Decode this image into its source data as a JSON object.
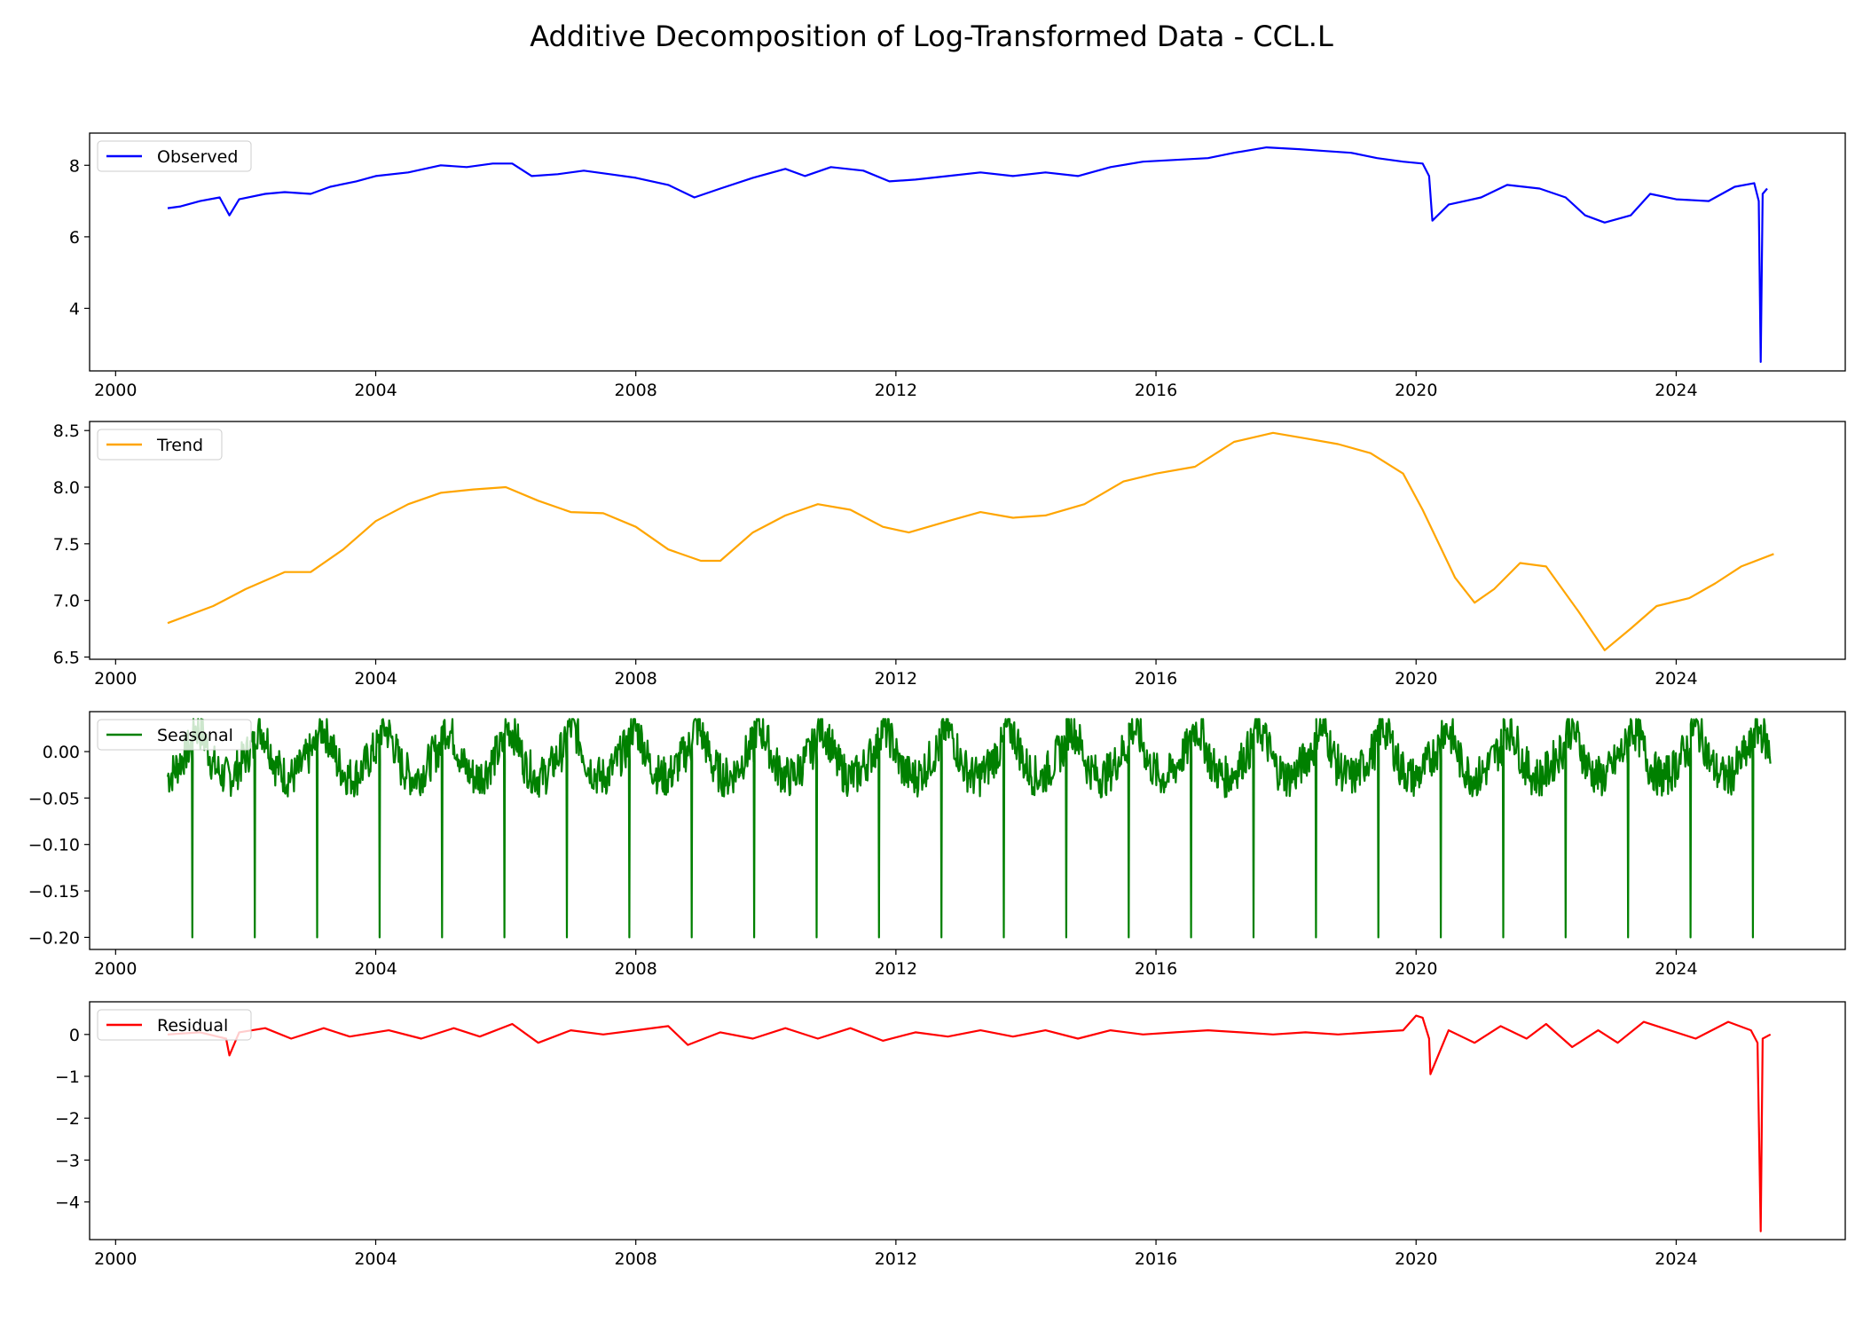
{
  "chart_data": {
    "title": "Additive Decomposition of Log-Transformed Data - CCL.L",
    "type": "line",
    "x_range": [
      1999.6,
      2026.6
    ],
    "x_ticks": [
      2000,
      2004,
      2008,
      2012,
      2016,
      2020,
      2024
    ],
    "panels": [
      {
        "name": "Observed",
        "color": "#0000ff",
        "legend": "upper-left",
        "ylim": [
          2.25,
          8.9
        ],
        "yticks": [
          4,
          6,
          8
        ],
        "yticklabels": [
          "4",
          "6",
          "8"
        ],
        "points": [
          [
            2000.8,
            6.8
          ],
          [
            2001.0,
            6.85
          ],
          [
            2001.3,
            7.0
          ],
          [
            2001.6,
            7.1
          ],
          [
            2001.75,
            6.6
          ],
          [
            2001.9,
            7.05
          ],
          [
            2002.3,
            7.2
          ],
          [
            2002.6,
            7.25
          ],
          [
            2003.0,
            7.2
          ],
          [
            2003.3,
            7.4
          ],
          [
            2003.7,
            7.55
          ],
          [
            2004.0,
            7.7
          ],
          [
            2004.5,
            7.8
          ],
          [
            2005.0,
            8.0
          ],
          [
            2005.4,
            7.95
          ],
          [
            2005.8,
            8.05
          ],
          [
            2006.1,
            8.05
          ],
          [
            2006.4,
            7.7
          ],
          [
            2006.8,
            7.75
          ],
          [
            2007.2,
            7.85
          ],
          [
            2007.6,
            7.75
          ],
          [
            2008.0,
            7.65
          ],
          [
            2008.5,
            7.45
          ],
          [
            2008.9,
            7.1
          ],
          [
            2009.3,
            7.35
          ],
          [
            2009.8,
            7.65
          ],
          [
            2010.3,
            7.9
          ],
          [
            2010.6,
            7.7
          ],
          [
            2011.0,
            7.95
          ],
          [
            2011.5,
            7.85
          ],
          [
            2011.9,
            7.55
          ],
          [
            2012.3,
            7.6
          ],
          [
            2012.8,
            7.7
          ],
          [
            2013.3,
            7.8
          ],
          [
            2013.8,
            7.7
          ],
          [
            2014.3,
            7.8
          ],
          [
            2014.8,
            7.7
          ],
          [
            2015.3,
            7.95
          ],
          [
            2015.8,
            8.1
          ],
          [
            2016.3,
            8.15
          ],
          [
            2016.8,
            8.2
          ],
          [
            2017.2,
            8.35
          ],
          [
            2017.7,
            8.5
          ],
          [
            2018.2,
            8.45
          ],
          [
            2018.6,
            8.4
          ],
          [
            2019.0,
            8.35
          ],
          [
            2019.4,
            8.2
          ],
          [
            2019.8,
            8.1
          ],
          [
            2020.1,
            8.05
          ],
          [
            2020.2,
            7.7
          ],
          [
            2020.25,
            6.45
          ],
          [
            2020.5,
            6.9
          ],
          [
            2021.0,
            7.1
          ],
          [
            2021.4,
            7.45
          ],
          [
            2021.9,
            7.35
          ],
          [
            2022.3,
            7.1
          ],
          [
            2022.6,
            6.6
          ],
          [
            2022.9,
            6.4
          ],
          [
            2023.3,
            6.6
          ],
          [
            2023.6,
            7.2
          ],
          [
            2024.0,
            7.05
          ],
          [
            2024.5,
            7.0
          ],
          [
            2024.9,
            7.4
          ],
          [
            2025.2,
            7.5
          ],
          [
            2025.27,
            7.0
          ],
          [
            2025.3,
            2.5
          ],
          [
            2025.33,
            7.2
          ],
          [
            2025.4,
            7.35
          ]
        ]
      },
      {
        "name": "Trend",
        "color": "#ffa500",
        "legend": "upper-left",
        "ylim": [
          6.48,
          8.58
        ],
        "yticks": [
          6.5,
          7.0,
          7.5,
          8.0,
          8.5
        ],
        "yticklabels": [
          "6.5",
          "7.0",
          "7.5",
          "8.0",
          "8.5"
        ],
        "points": [
          [
            2000.8,
            6.8
          ],
          [
            2001.5,
            6.95
          ],
          [
            2002.0,
            7.1
          ],
          [
            2002.6,
            7.25
          ],
          [
            2003.0,
            7.25
          ],
          [
            2003.5,
            7.45
          ],
          [
            2004.0,
            7.7
          ],
          [
            2004.5,
            7.85
          ],
          [
            2005.0,
            7.95
          ],
          [
            2005.5,
            7.98
          ],
          [
            2006.0,
            8.0
          ],
          [
            2006.5,
            7.88
          ],
          [
            2007.0,
            7.78
          ],
          [
            2007.5,
            7.77
          ],
          [
            2008.0,
            7.65
          ],
          [
            2008.5,
            7.45
          ],
          [
            2009.0,
            7.35
          ],
          [
            2009.3,
            7.35
          ],
          [
            2009.8,
            7.6
          ],
          [
            2010.3,
            7.75
          ],
          [
            2010.8,
            7.85
          ],
          [
            2011.3,
            7.8
          ],
          [
            2011.8,
            7.65
          ],
          [
            2012.2,
            7.6
          ],
          [
            2012.8,
            7.7
          ],
          [
            2013.3,
            7.78
          ],
          [
            2013.8,
            7.73
          ],
          [
            2014.3,
            7.75
          ],
          [
            2014.9,
            7.85
          ],
          [
            2015.5,
            8.05
          ],
          [
            2016.0,
            8.12
          ],
          [
            2016.6,
            8.18
          ],
          [
            2017.2,
            8.4
          ],
          [
            2017.8,
            8.48
          ],
          [
            2018.3,
            8.43
          ],
          [
            2018.8,
            8.38
          ],
          [
            2019.3,
            8.3
          ],
          [
            2019.8,
            8.12
          ],
          [
            2020.1,
            7.8
          ],
          [
            2020.6,
            7.2
          ],
          [
            2020.9,
            6.98
          ],
          [
            2021.2,
            7.1
          ],
          [
            2021.6,
            7.33
          ],
          [
            2022.0,
            7.3
          ],
          [
            2022.5,
            6.9
          ],
          [
            2022.9,
            6.56
          ],
          [
            2023.3,
            6.75
          ],
          [
            2023.7,
            6.95
          ],
          [
            2024.2,
            7.02
          ],
          [
            2024.6,
            7.15
          ],
          [
            2025.0,
            7.3
          ],
          [
            2025.5,
            7.41
          ]
        ]
      },
      {
        "name": "Seasonal",
        "color": "#008000",
        "legend": "upper-left",
        "ylim": [
          -0.213,
          0.043
        ],
        "yticks": [
          0.0,
          -0.05,
          -0.1,
          -0.15,
          -0.2
        ],
        "yticklabels": [
          "0.00",
          "−0.05",
          "−0.10",
          "−0.15",
          "−0.20"
        ],
        "period": 0.96,
        "first_dip": 2001.18,
        "dip_value": -0.2,
        "x_start": 2000.8,
        "x_end": 2025.45
      },
      {
        "name": "Residual",
        "color": "#ff0000",
        "legend": "upper-left",
        "ylim": [
          -4.9,
          0.78
        ],
        "yticks": [
          0,
          -1,
          -2,
          -3,
          -4
        ],
        "yticklabels": [
          "0",
          "−1",
          "−2",
          "−3",
          "−4"
        ],
        "points": [
          [
            2000.8,
            0.0
          ],
          [
            2001.3,
            0.05
          ],
          [
            2001.7,
            -0.1
          ],
          [
            2001.75,
            -0.5
          ],
          [
            2001.9,
            0.05
          ],
          [
            2002.3,
            0.15
          ],
          [
            2002.7,
            -0.1
          ],
          [
            2003.2,
            0.15
          ],
          [
            2003.6,
            -0.05
          ],
          [
            2004.2,
            0.1
          ],
          [
            2004.7,
            -0.1
          ],
          [
            2005.2,
            0.15
          ],
          [
            2005.6,
            -0.05
          ],
          [
            2006.1,
            0.25
          ],
          [
            2006.5,
            -0.2
          ],
          [
            2007.0,
            0.1
          ],
          [
            2007.5,
            0.0
          ],
          [
            2008.0,
            0.1
          ],
          [
            2008.5,
            0.2
          ],
          [
            2008.8,
            -0.25
          ],
          [
            2009.3,
            0.05
          ],
          [
            2009.8,
            -0.1
          ],
          [
            2010.3,
            0.15
          ],
          [
            2010.8,
            -0.1
          ],
          [
            2011.3,
            0.15
          ],
          [
            2011.8,
            -0.15
          ],
          [
            2012.3,
            0.05
          ],
          [
            2012.8,
            -0.05
          ],
          [
            2013.3,
            0.1
          ],
          [
            2013.8,
            -0.05
          ],
          [
            2014.3,
            0.1
          ],
          [
            2014.8,
            -0.1
          ],
          [
            2015.3,
            0.1
          ],
          [
            2015.8,
            0.0
          ],
          [
            2016.3,
            0.05
          ],
          [
            2016.8,
            0.1
          ],
          [
            2017.3,
            0.05
          ],
          [
            2017.8,
            0.0
          ],
          [
            2018.3,
            0.05
          ],
          [
            2018.8,
            0.0
          ],
          [
            2019.3,
            0.05
          ],
          [
            2019.8,
            0.1
          ],
          [
            2020.0,
            0.45
          ],
          [
            2020.1,
            0.4
          ],
          [
            2020.2,
            -0.1
          ],
          [
            2020.22,
            -0.95
          ],
          [
            2020.5,
            0.1
          ],
          [
            2020.9,
            -0.2
          ],
          [
            2021.3,
            0.2
          ],
          [
            2021.7,
            -0.1
          ],
          [
            2022.0,
            0.25
          ],
          [
            2022.4,
            -0.3
          ],
          [
            2022.8,
            0.1
          ],
          [
            2023.1,
            -0.2
          ],
          [
            2023.5,
            0.3
          ],
          [
            2023.9,
            0.1
          ],
          [
            2024.3,
            -0.1
          ],
          [
            2024.8,
            0.3
          ],
          [
            2025.15,
            0.1
          ],
          [
            2025.25,
            -0.2
          ],
          [
            2025.3,
            -4.7
          ],
          [
            2025.33,
            -0.1
          ],
          [
            2025.45,
            0.0
          ]
        ]
      }
    ]
  }
}
